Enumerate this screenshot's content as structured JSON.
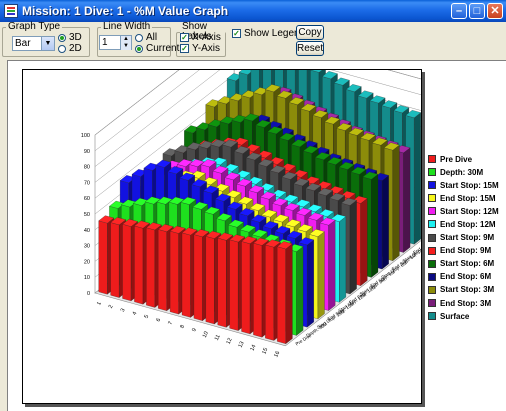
{
  "window": {
    "title": "Mission: 1 Dive: 1 - %M Value Graph",
    "minimize_icon": "minimize-icon",
    "maximize_icon": "maximize-icon",
    "close_icon": "close-icon"
  },
  "toolbar": {
    "graph_type": {
      "label": "Graph Type",
      "select_value": "Bar",
      "option_3d": "3D",
      "option_2d": "2D",
      "selected": "3D"
    },
    "line_width": {
      "label": "Line Width",
      "value": "1",
      "option_all": "All",
      "option_current": "Current",
      "selected": "Current"
    },
    "show_labels": {
      "label": "Show Labels",
      "x_axis": "X-Axis",
      "y_axis": "Y-Axis",
      "x_checked": true,
      "y_checked": true
    },
    "show_legend": {
      "label": "Show Legend",
      "checked": true
    },
    "copy_label": "Copy",
    "reset_label": "Reset"
  },
  "chart_data": {
    "type": "bar",
    "three_d": true,
    "categories": [
      "1",
      "2",
      "3",
      "4",
      "5",
      "6",
      "7",
      "8",
      "9",
      "10",
      "11",
      "12",
      "13",
      "14",
      "15",
      "16"
    ],
    "yticks": [
      "0",
      "10",
      "20",
      "30",
      "40",
      "50",
      "60",
      "70",
      "80",
      "90",
      "100"
    ],
    "ylim": [
      0,
      100
    ],
    "grid": true,
    "legend_position": "right",
    "series": [
      {
        "name": "Pre Dive",
        "color": "#ee1c1c",
        "values": [
          45,
          46,
          47,
          48,
          49,
          50,
          51,
          52,
          53,
          54,
          55,
          56,
          57,
          58,
          59,
          60
        ]
      },
      {
        "name": "Depth: 30M",
        "color": "#1ee01e",
        "values": [
          49,
          52,
          55,
          58,
          60,
          62,
          64,
          63,
          62,
          60,
          58,
          57,
          56,
          55,
          54,
          53
        ]
      },
      {
        "name": "Start Stop: 15M",
        "color": "#1212e0",
        "values": [
          60,
          66,
          72,
          76,
          74,
          72,
          70,
          68,
          65,
          62,
          60,
          58,
          56,
          55,
          54,
          52
        ]
      },
      {
        "name": "End Stop: 15M",
        "color": "#f5f51a",
        "values": [
          52,
          56,
          60,
          63,
          66,
          68,
          66,
          64,
          62,
          60,
          58,
          56,
          55,
          54,
          53,
          52
        ]
      },
      {
        "name": "Start Stop: 12M",
        "color": "#f01ef0",
        "values": [
          55,
          59,
          63,
          66,
          68,
          70,
          68,
          66,
          64,
          62,
          60,
          58,
          57,
          56,
          55,
          54
        ]
      },
      {
        "name": "End Stop: 12M",
        "color": "#1ef0f0",
        "values": [
          50,
          54,
          58,
          61,
          64,
          66,
          64,
          62,
          60,
          58,
          56,
          55,
          54,
          53,
          52,
          51
        ]
      },
      {
        "name": "Start Stop: 9M",
        "color": "#4a4a4a",
        "values": [
          56,
          60,
          64,
          67,
          70,
          72,
          70,
          68,
          66,
          64,
          62,
          60,
          59,
          58,
          57,
          56
        ]
      },
      {
        "name": "End Stop: 9M",
        "color": "#f51e1e",
        "values": [
          52,
          56,
          60,
          63,
          66,
          68,
          66,
          64,
          62,
          60,
          58,
          56,
          55,
          54,
          53,
          52
        ]
      },
      {
        "name": "Start Stop: 6M",
        "color": "#0a6e0a",
        "values": [
          60,
          64,
          68,
          72,
          75,
          78,
          76,
          74,
          72,
          70,
          68,
          66,
          65,
          64,
          63,
          62
        ]
      },
      {
        "name": "End Stop: 6M",
        "color": "#0a0a82",
        "values": [
          56,
          60,
          64,
          67,
          70,
          72,
          70,
          68,
          66,
          64,
          62,
          60,
          59,
          58,
          57,
          56
        ]
      },
      {
        "name": "Start Stop: 3M",
        "color": "#8c8c0a",
        "values": [
          66,
          70,
          74,
          78,
          82,
          86,
          84,
          82,
          80,
          78,
          76,
          74,
          73,
          72,
          71,
          70
        ]
      },
      {
        "name": "End Stop: 3M",
        "color": "#7a1e7a",
        "values": [
          62,
          66,
          70,
          73,
          76,
          79,
          77,
          75,
          73,
          71,
          69,
          67,
          66,
          65,
          64,
          63
        ]
      },
      {
        "name": "Surface",
        "color": "#148c8c",
        "values": [
          72,
          78,
          84,
          88,
          92,
          96,
          94,
          92,
          90,
          88,
          86,
          84,
          83,
          82,
          81,
          80
        ]
      }
    ]
  }
}
